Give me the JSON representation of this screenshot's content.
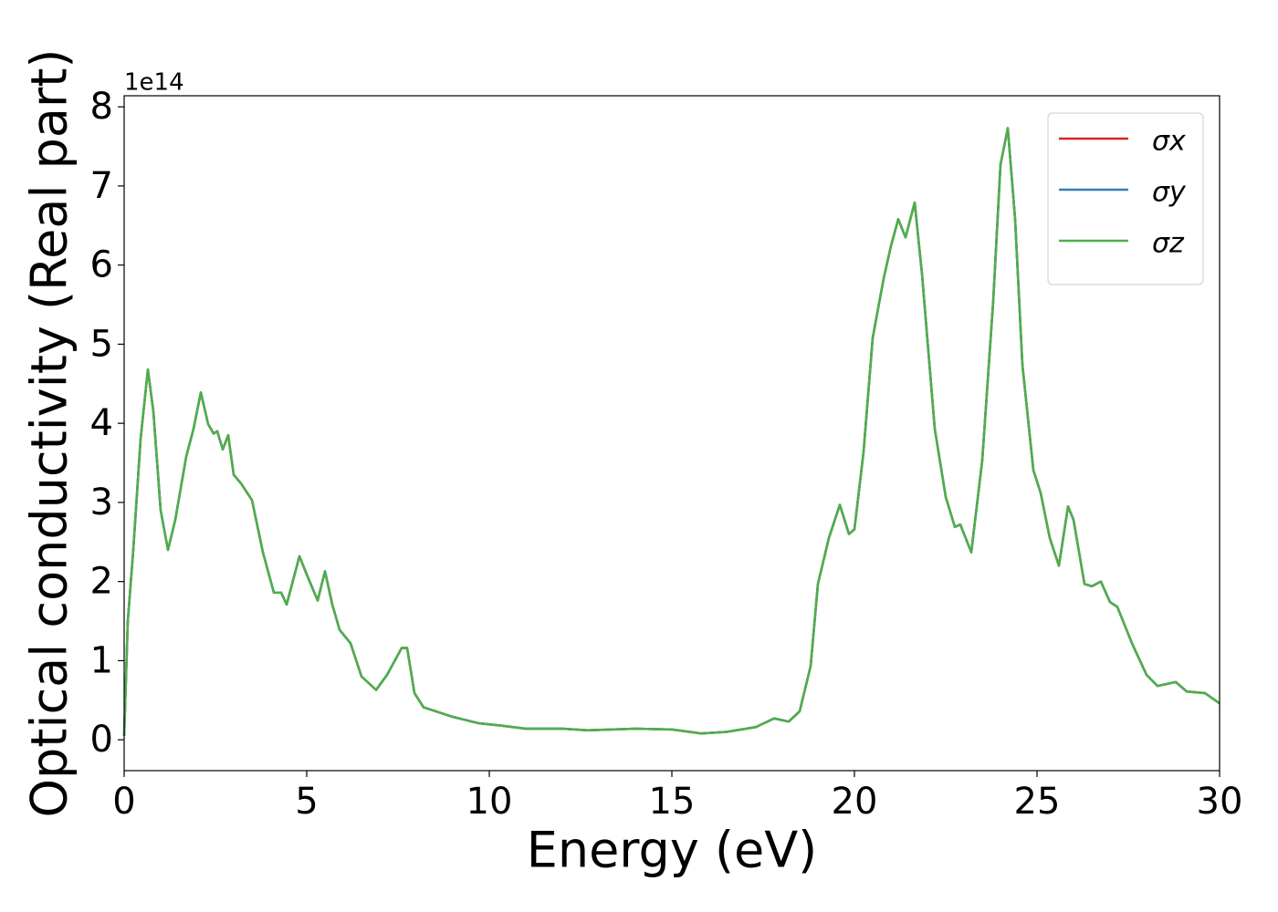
{
  "chart_data": {
    "type": "line",
    "xlabel": "Energy (eV)",
    "ylabel": "Optical conductivity (Real part)",
    "y_offset_label": "1e14",
    "xlim": [
      0,
      30
    ],
    "ylim": [
      -0.39,
      8.14
    ],
    "xticks": [
      0,
      5,
      10,
      15,
      20,
      25,
      30
    ],
    "yticks": [
      0,
      1,
      2,
      3,
      4,
      5,
      6,
      7,
      8
    ],
    "legend": "upper right",
    "x": [
      0,
      0.1,
      0.25,
      0.45,
      0.65,
      0.8,
      1.0,
      1.2,
      1.4,
      1.7,
      1.9,
      2.1,
      2.3,
      2.45,
      2.55,
      2.7,
      2.85,
      3.0,
      3.2,
      3.5,
      3.8,
      4.1,
      4.3,
      4.45,
      4.6,
      4.8,
      5.0,
      5.3,
      5.5,
      5.7,
      5.9,
      6.2,
      6.5,
      6.9,
      7.2,
      7.6,
      7.75,
      7.95,
      8.2,
      9,
      9.7,
      10.3,
      11,
      12,
      12.7,
      14,
      15,
      15.8,
      16.5,
      17.3,
      17.8,
      18.2,
      18.5,
      18.8,
      19.0,
      19.3,
      19.6,
      19.85,
      20.0,
      20.25,
      20.5,
      20.8,
      21.0,
      21.2,
      21.4,
      21.65,
      21.85,
      22.2,
      22.5,
      22.75,
      22.9,
      23.2,
      23.5,
      23.8,
      24.0,
      24.2,
      24.4,
      24.6,
      24.9,
      25.1,
      25.35,
      25.6,
      25.85,
      26.0,
      26.3,
      26.5,
      26.75,
      27.0,
      27.2,
      27.6,
      28.0,
      28.3,
      28.8,
      29.1,
      29.6,
      30
    ],
    "series": [
      {
        "name": "σx",
        "color": "#d62728",
        "values": [
          0.05,
          1.5,
          2.4,
          3.8,
          4.68,
          4.15,
          2.9,
          2.4,
          2.78,
          3.58,
          3.93,
          4.39,
          3.99,
          3.87,
          3.9,
          3.67,
          3.85,
          3.35,
          3.24,
          3.03,
          2.37,
          1.86,
          1.86,
          1.71,
          1.97,
          2.32,
          2.09,
          1.76,
          2.13,
          1.71,
          1.39,
          1.22,
          0.8,
          0.63,
          0.82,
          1.16,
          1.16,
          0.59,
          0.41,
          0.29,
          0.21,
          0.18,
          0.14,
          0.14,
          0.12,
          0.14,
          0.13,
          0.08,
          0.1,
          0.16,
          0.27,
          0.23,
          0.36,
          0.93,
          1.97,
          2.55,
          2.97,
          2.6,
          2.66,
          3.64,
          5.08,
          5.83,
          6.24,
          6.58,
          6.35,
          6.79,
          5.89,
          3.93,
          3.07,
          2.69,
          2.72,
          2.37,
          3.53,
          5.54,
          7.27,
          7.73,
          6.58,
          4.74,
          3.41,
          3.12,
          2.55,
          2.2,
          2.95,
          2.78,
          1.97,
          1.94,
          2.0,
          1.74,
          1.68,
          1.22,
          0.82,
          0.68,
          0.73,
          0.61,
          0.59,
          0.46
        ]
      },
      {
        "name": "σy",
        "color": "#377eb8",
        "values": [
          0.05,
          1.5,
          2.4,
          3.8,
          4.68,
          4.15,
          2.9,
          2.4,
          2.78,
          3.58,
          3.93,
          4.39,
          3.99,
          3.87,
          3.9,
          3.67,
          3.85,
          3.35,
          3.24,
          3.03,
          2.37,
          1.86,
          1.86,
          1.71,
          1.97,
          2.32,
          2.09,
          1.76,
          2.13,
          1.71,
          1.39,
          1.22,
          0.8,
          0.63,
          0.82,
          1.16,
          1.16,
          0.59,
          0.41,
          0.29,
          0.21,
          0.18,
          0.14,
          0.14,
          0.12,
          0.14,
          0.13,
          0.08,
          0.1,
          0.16,
          0.27,
          0.23,
          0.36,
          0.93,
          1.97,
          2.55,
          2.97,
          2.6,
          2.66,
          3.64,
          5.08,
          5.83,
          6.24,
          6.58,
          6.35,
          6.79,
          5.89,
          3.93,
          3.07,
          2.69,
          2.72,
          2.37,
          3.53,
          5.54,
          7.27,
          7.73,
          6.58,
          4.74,
          3.41,
          3.12,
          2.55,
          2.2,
          2.95,
          2.78,
          1.97,
          1.94,
          2.0,
          1.74,
          1.68,
          1.22,
          0.82,
          0.68,
          0.73,
          0.61,
          0.59,
          0.46
        ]
      },
      {
        "name": "σz",
        "color": "#4daf4a",
        "values": [
          0.05,
          1.5,
          2.4,
          3.8,
          4.68,
          4.15,
          2.9,
          2.4,
          2.78,
          3.58,
          3.93,
          4.39,
          3.99,
          3.87,
          3.9,
          3.67,
          3.85,
          3.35,
          3.24,
          3.03,
          2.37,
          1.86,
          1.86,
          1.71,
          1.97,
          2.32,
          2.09,
          1.76,
          2.13,
          1.71,
          1.39,
          1.22,
          0.8,
          0.63,
          0.82,
          1.16,
          1.16,
          0.59,
          0.41,
          0.29,
          0.21,
          0.18,
          0.14,
          0.14,
          0.12,
          0.14,
          0.13,
          0.08,
          0.1,
          0.16,
          0.27,
          0.23,
          0.36,
          0.93,
          1.97,
          2.55,
          2.97,
          2.6,
          2.66,
          3.64,
          5.08,
          5.83,
          6.24,
          6.58,
          6.35,
          6.79,
          5.89,
          3.93,
          3.07,
          2.69,
          2.72,
          2.37,
          3.53,
          5.54,
          7.27,
          7.73,
          6.58,
          4.74,
          3.41,
          3.12,
          2.55,
          2.2,
          2.95,
          2.78,
          1.97,
          1.94,
          2.0,
          1.74,
          1.68,
          1.22,
          0.82,
          0.68,
          0.73,
          0.61,
          0.59,
          0.46
        ]
      }
    ]
  }
}
